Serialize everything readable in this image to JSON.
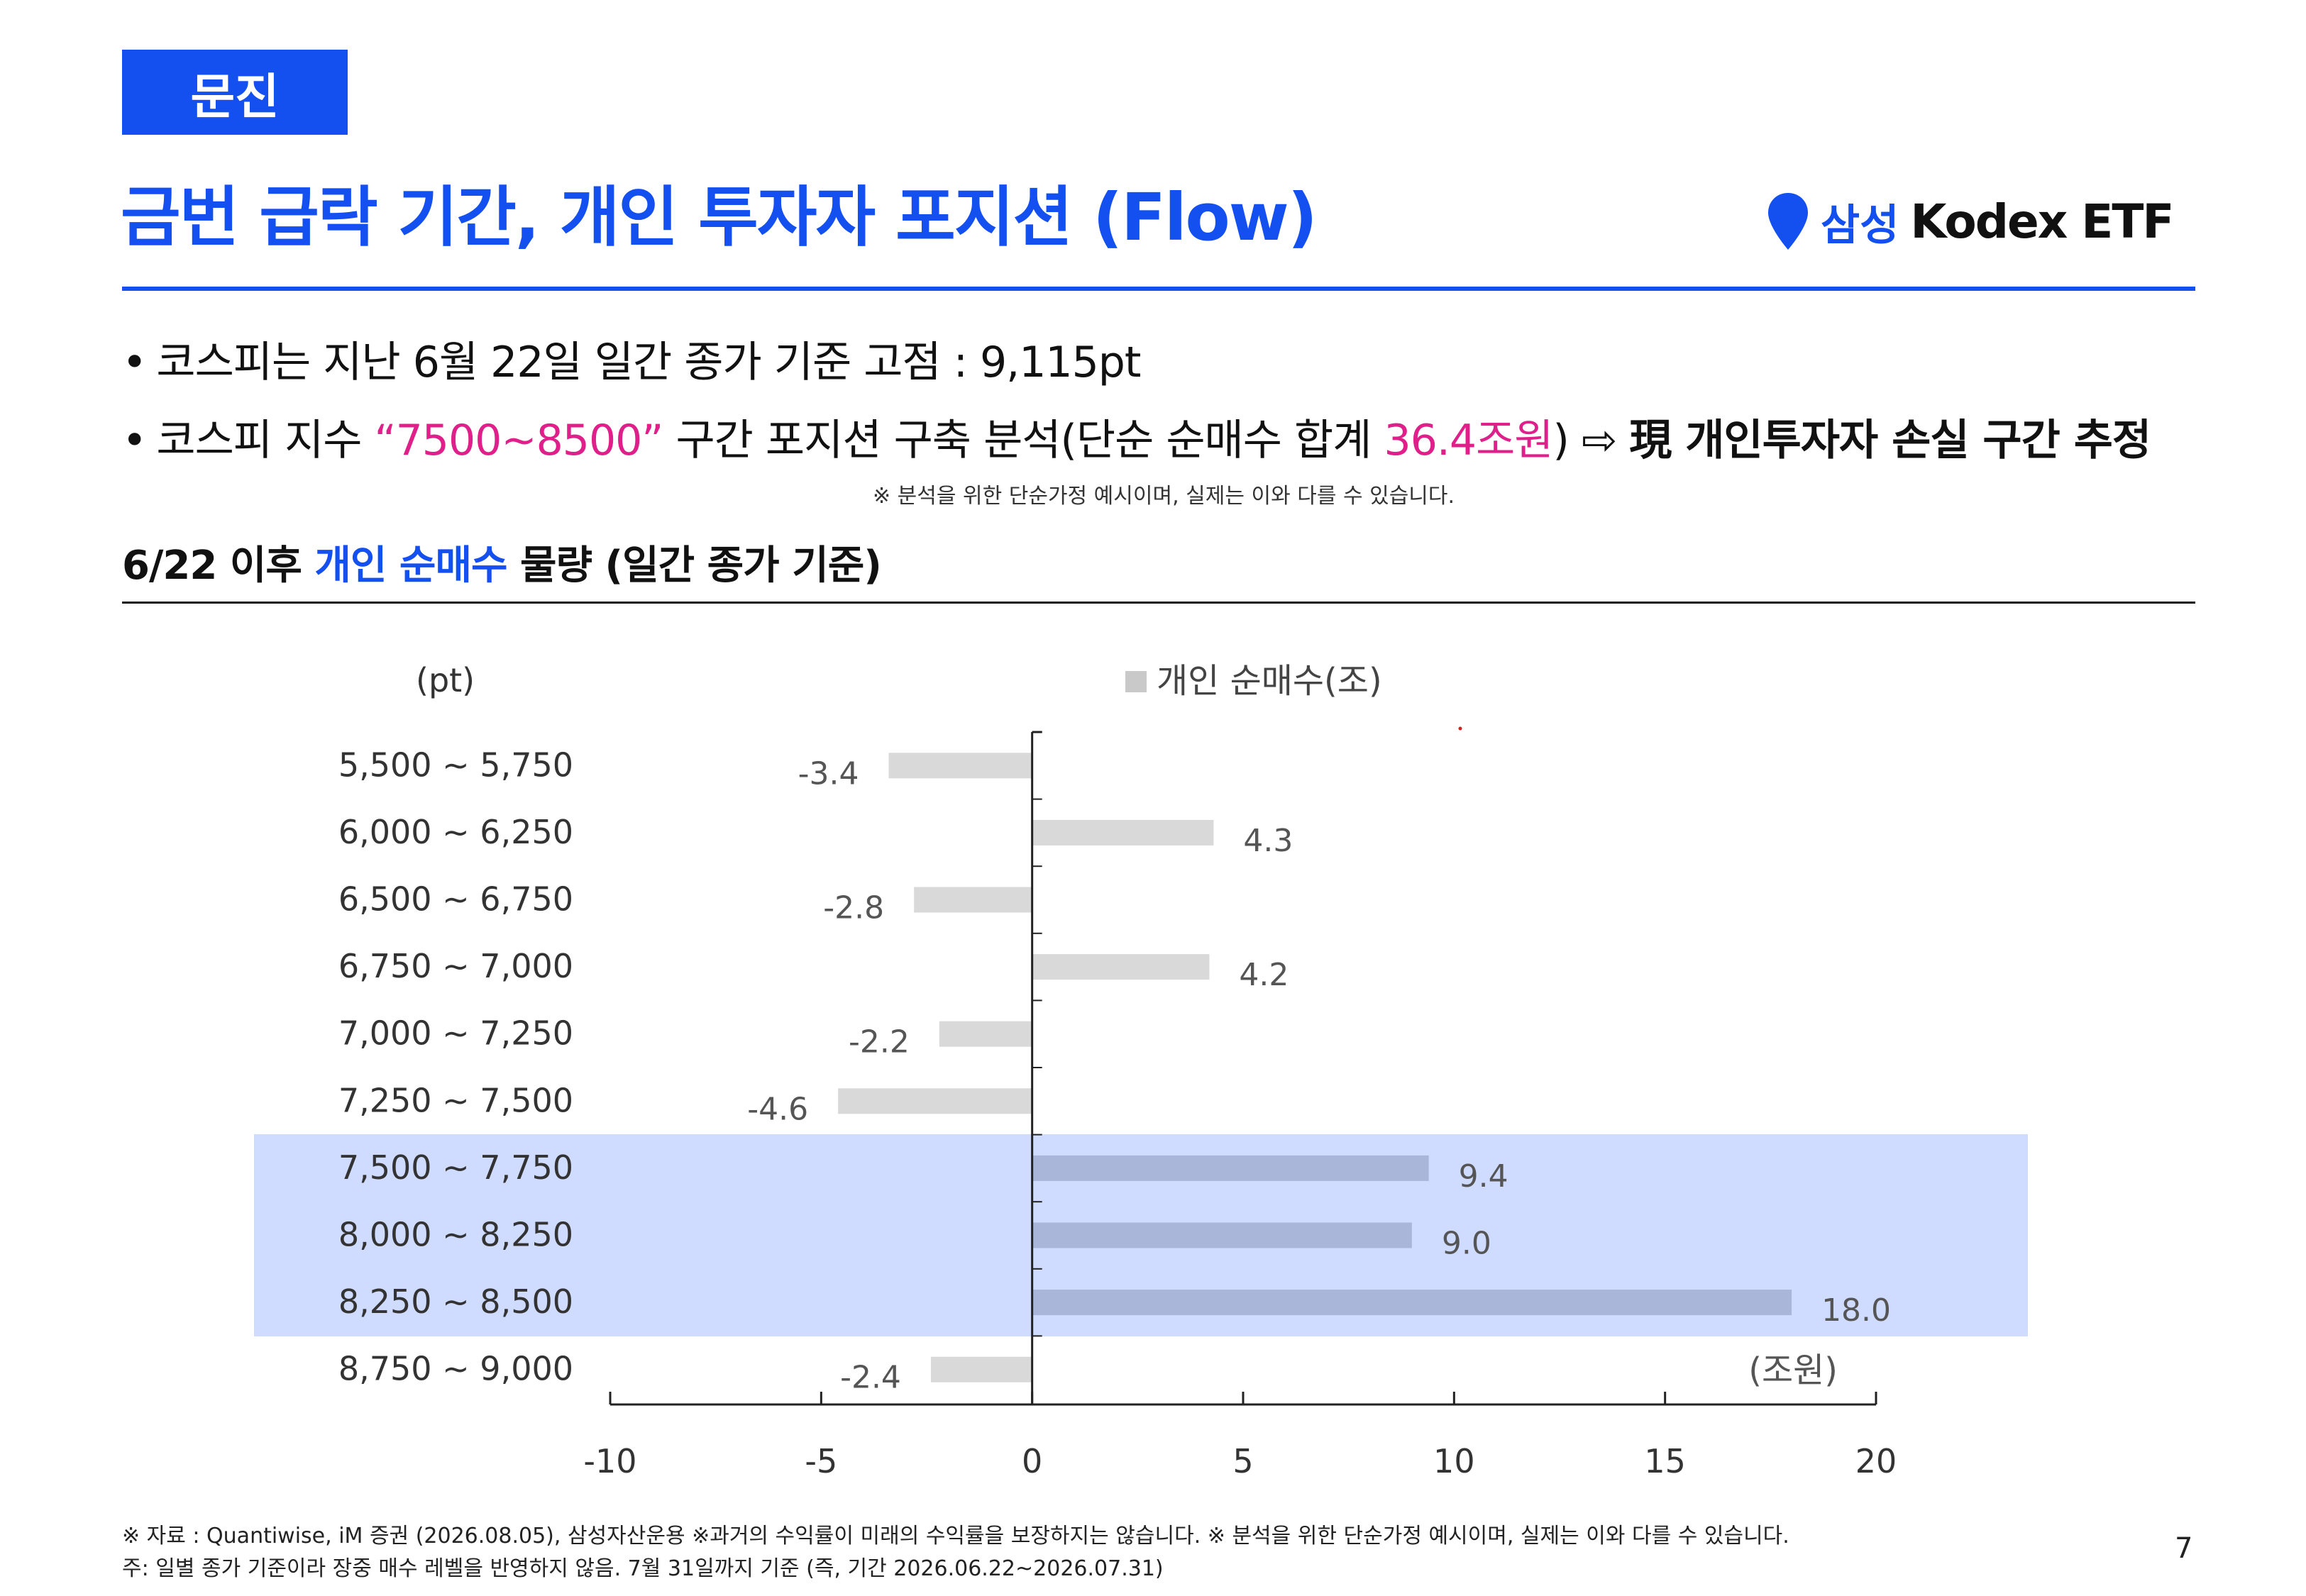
{
  "header": {
    "tag": "문진",
    "title": "금번 급락 기간, 개인 투자자 포지션 (Flow)",
    "brand_prefix": "삼성",
    "brand_name": "Kodex ETF"
  },
  "bullets": [
    {
      "text": "코스피는 지난 6월 22일 일간 종가 기준 고점 : 9,115pt"
    },
    {
      "part1": "코스피 지수 ",
      "highlight": "“7500~8500”",
      "part2": " 구간 포지션 구축 분석(단순 순매수 합계 ",
      "sum": "36.4조원",
      "part3": ") ⇨ ",
      "conclusion": "現 개인투자자 손실 구간 추정"
    }
  ],
  "disclaimer_mid": "※ 분석을 위한 단순가정 예시이며, 실제는 이와 다를 수 있습니다.",
  "section": {
    "prefix": "6/22 이후 ",
    "highlight": "개인 순매수",
    "suffix": " 물량 (일간 종가 기준)"
  },
  "chart_data": {
    "type": "bar",
    "orientation": "horizontal",
    "y_unit_label": "(pt)",
    "x_unit_label": "(조원)",
    "legend": "개인 순매수(조)",
    "categories": [
      "5,500 ~ 5,750",
      "6,000 ~ 6,250",
      "6,500 ~ 6,750",
      "6,750 ~ 7,000",
      "7,000 ~ 7,250",
      "7,250 ~ 7,500",
      "7,500 ~ 7,750",
      "8,000 ~ 8,250",
      "8,250 ~ 8,500",
      "8,750 ~ 9,000"
    ],
    "values": [
      -3.4,
      4.3,
      -2.8,
      4.2,
      -2.2,
      -4.6,
      9.4,
      9.0,
      18.0,
      -2.4
    ],
    "value_labels": [
      "-3.4",
      "4.3",
      "-2.8",
      "4.2",
      "-2.2",
      "-4.6",
      "9.4",
      "9.0",
      "18.0",
      "-2.4"
    ],
    "highlighted_categories": [
      "7,500 ~ 7,750",
      "8,000 ~ 8,250",
      "8,250 ~ 8,500"
    ],
    "xlim": [
      -10,
      20
    ],
    "xticks": [
      "-10",
      "-5",
      "0",
      "5",
      "10",
      "15",
      "20"
    ],
    "colors": {
      "bar": "#d9d9d9",
      "bar_highlight": "#a9b5d9",
      "band": "#cfdbff"
    }
  },
  "footer": {
    "line1": "※ 자료 : Quantiwise,  iM  증권 (2026.08.05), 삼성자산운용  ※과거의 수익률이 미래의 수익률을 보장하지는 않습니다. ※ 분석을 위한 단순가정 예시이며, 실제는 이와 다를 수 있습니다.",
    "line2": "주: 일별 종가 기준이라 장중 매수 레벨을 반영하지 않음. 7월 31일까지 기준 (즉, 기간 2026.06.22~2026.07.31)",
    "page_number": "7"
  }
}
